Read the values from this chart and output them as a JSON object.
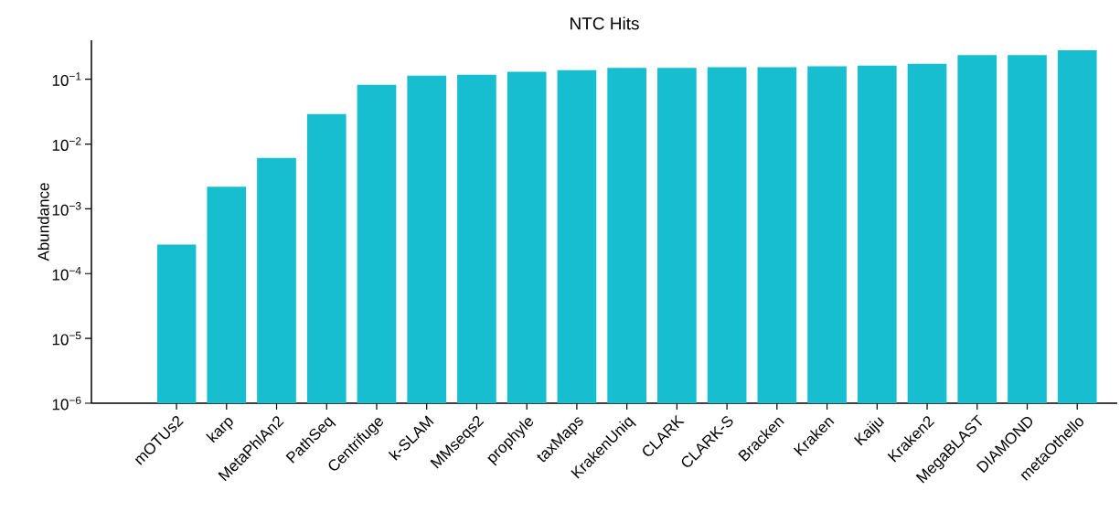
{
  "chart_data": {
    "type": "bar",
    "title": "NTC Hits",
    "ylabel": "Abundance",
    "categories": [
      "mOTUs2",
      "karp",
      "MetaPhlAn2",
      "PathSeq",
      "Centrifuge",
      "k-SLAM",
      "MMseqs2",
      "prophyle",
      "taxMaps",
      "KrakenUniq",
      "CLARK",
      "CLARK-S",
      "Bracken",
      "Kraken",
      "Kaiju",
      "Kraken2",
      "MegaBLAST",
      "DIAMOND",
      "metaOthello"
    ],
    "values": [
      0.00028,
      0.0022,
      0.0061,
      0.029,
      0.082,
      0.114,
      0.117,
      0.13,
      0.138,
      0.15,
      0.15,
      0.153,
      0.153,
      0.158,
      0.163,
      0.174,
      0.235,
      0.235,
      0.28
    ],
    "color": "#17becf",
    "log": true,
    "ylim": [
      1e-06,
      0.4
    ],
    "yticks": [
      {
        "value": 1e-06,
        "label": "10$^{−6}$"
      },
      {
        "value": 1e-05,
        "label": "10$^{−5}$"
      },
      {
        "value": 0.0001,
        "label": "10$^{−4}$"
      },
      {
        "value": 0.001,
        "label": "10$^{−3}$"
      },
      {
        "value": 0.01,
        "label": "10$^{−2}$"
      },
      {
        "value": 0.1,
        "label": "10$^{−1}$"
      }
    ],
    "grid": false
  }
}
